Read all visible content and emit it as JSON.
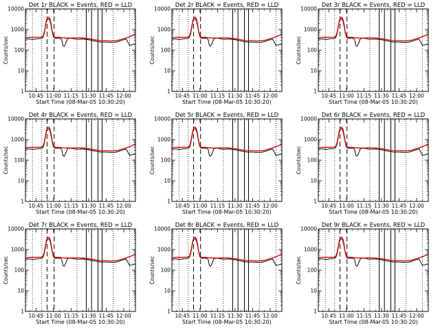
{
  "chart_data": [
    {
      "type": "line",
      "title": "Det 1r BLACK = Events, RED = LLD"
    },
    {
      "type": "line",
      "title": "Det 2r BLACK = Events, RED = LLD"
    },
    {
      "type": "line",
      "title": "Det 3r BLACK = Events, RED = LLD"
    },
    {
      "type": "line",
      "title": "Det 4r BLACK = Events, RED = LLD"
    },
    {
      "type": "line",
      "title": "Det 5r BLACK = Events, RED = LLD"
    },
    {
      "type": "line",
      "title": "Det 6r BLACK = Events, RED = LLD"
    },
    {
      "type": "line",
      "title": "Det 7r BLACK = Events, RED = LLD"
    },
    {
      "type": "line",
      "title": "Det 8r BLACK = Events, RED = LLD"
    },
    {
      "type": "line",
      "title": "Det 9r BLACK = Events, RED = LLD"
    }
  ],
  "common": {
    "xlabel": "Start Time (08-Mar-05 10:30:20)",
    "ylabel": "Counts/sec",
    "x_unit": "minutes after 10:30",
    "xlim": [
      6,
      100
    ],
    "ylim": [
      1,
      10000
    ],
    "yscale": "log",
    "yticks": [
      {
        "value": 1,
        "label": "1"
      },
      {
        "value": 10,
        "label": "10"
      },
      {
        "value": 100,
        "label": "100"
      },
      {
        "value": 1000,
        "label": "1000"
      },
      {
        "value": 10000,
        "label": "10000"
      }
    ],
    "xticks": [
      {
        "value": 15,
        "label": "10:45"
      },
      {
        "value": 30,
        "label": "11:00"
      },
      {
        "value": 45,
        "label": "11:15"
      },
      {
        "value": 60,
        "label": "11:30"
      },
      {
        "value": 75,
        "label": "11:45"
      },
      {
        "value": 90,
        "label": "12:00"
      }
    ],
    "dotted_lines_x": [
      12,
      20,
      50,
      68,
      81,
      95
    ],
    "dashed_lines_x": [
      24.5,
      30.5
    ],
    "solid_lines_x": [
      58,
      62.5,
      68,
      71.5
    ],
    "series": [
      {
        "name": "Events",
        "color": "#000000",
        "x": [
          6,
          10,
          12,
          14,
          16,
          18,
          20,
          21,
          22,
          23,
          24,
          25,
          26,
          27,
          28,
          29,
          30,
          31,
          32,
          34,
          36,
          37,
          38,
          39,
          40,
          42,
          45,
          50,
          55,
          60,
          65,
          70,
          75,
          80,
          82,
          85,
          88,
          90,
          92,
          93,
          95,
          97,
          98,
          100
        ],
        "y": [
          350,
          350,
          330,
          340,
          360,
          360,
          380,
          420,
          600,
          1200,
          2500,
          3200,
          3300,
          2700,
          1500,
          700,
          430,
          390,
          380,
          380,
          370,
          330,
          170,
          155,
          190,
          370,
          380,
          340,
          350,
          320,
          280,
          250,
          250,
          240,
          240,
          260,
          300,
          320,
          350,
          280,
          170,
          180,
          190,
          200
        ]
      },
      {
        "name": "LLD",
        "color": "#e00000",
        "x": [
          6,
          10,
          15,
          20,
          21,
          22,
          23,
          24,
          25,
          26,
          27,
          28,
          29,
          30,
          31,
          32,
          35,
          40,
          45,
          50,
          55,
          60,
          65,
          70,
          75,
          80,
          85,
          90,
          95,
          100
        ],
        "y": [
          400,
          420,
          420,
          430,
          480,
          700,
          1400,
          2800,
          3800,
          4000,
          3300,
          1800,
          800,
          480,
          430,
          420,
          420,
          390,
          390,
          400,
          390,
          360,
          320,
          290,
          290,
          280,
          300,
          360,
          450,
          600
        ]
      }
    ]
  }
}
